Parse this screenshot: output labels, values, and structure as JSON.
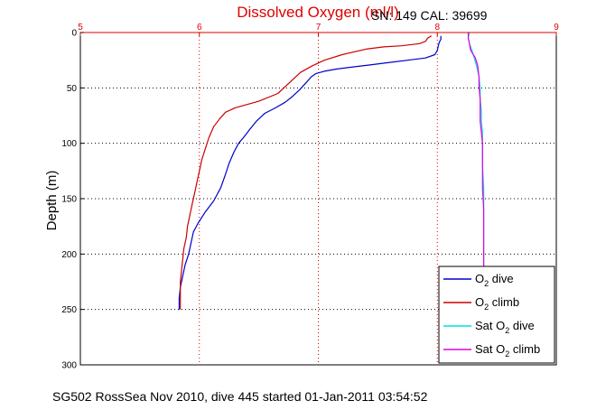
{
  "chart_data": {
    "type": "line",
    "title": "Dissolved Oxygen (ml/l)",
    "title_color": "#e00000",
    "annotation": "SN: 149  CAL: 39699",
    "ylabel": "Depth (m)",
    "xlim": [
      5,
      9
    ],
    "ylim": [
      0,
      300
    ],
    "y_inverted": true,
    "x_axis_position": "top",
    "x_tick_color": "#e00000",
    "x_ticks": [
      "5",
      "6",
      "7",
      "8",
      "9"
    ],
    "y_ticks": [
      "0",
      "50",
      "100",
      "150",
      "200",
      "250",
      "300"
    ],
    "grid": true,
    "legend_position": "bottom-right",
    "series": [
      {
        "name": "O2 dive",
        "legend_label": {
          "prefix": "O",
          "sub": "2",
          "suffix": " dive"
        },
        "color": "#0000cc",
        "points": [
          [
            8.03,
            3
          ],
          [
            8.03,
            6
          ],
          [
            8.02,
            8
          ],
          [
            8.01,
            11
          ],
          [
            8.0,
            16
          ],
          [
            7.98,
            20
          ],
          [
            7.9,
            23
          ],
          [
            7.75,
            25
          ],
          [
            7.6,
            27
          ],
          [
            7.45,
            29
          ],
          [
            7.3,
            31
          ],
          [
            7.15,
            33
          ],
          [
            7.05,
            35
          ],
          [
            6.98,
            37
          ],
          [
            6.94,
            40
          ],
          [
            6.9,
            45
          ],
          [
            6.84,
            52
          ],
          [
            6.78,
            58
          ],
          [
            6.72,
            63
          ],
          [
            6.64,
            68
          ],
          [
            6.55,
            73
          ],
          [
            6.48,
            80
          ],
          [
            6.42,
            88
          ],
          [
            6.37,
            95
          ],
          [
            6.33,
            100
          ],
          [
            6.29,
            108
          ],
          [
            6.25,
            118
          ],
          [
            6.22,
            128
          ],
          [
            6.18,
            140
          ],
          [
            6.12,
            152
          ],
          [
            6.05,
            162
          ],
          [
            5.99,
            172
          ],
          [
            5.95,
            180
          ],
          [
            5.93,
            190
          ],
          [
            5.91,
            200
          ],
          [
            5.88,
            210
          ],
          [
            5.86,
            220
          ],
          [
            5.84,
            230
          ],
          [
            5.83,
            240
          ],
          [
            5.83,
            250
          ]
        ]
      },
      {
        "name": "O2 climb",
        "legend_label": {
          "prefix": "O",
          "sub": "2",
          "suffix": " climb"
        },
        "color": "#cc0000",
        "points": [
          [
            7.95,
            3
          ],
          [
            7.92,
            5
          ],
          [
            7.9,
            8
          ],
          [
            7.85,
            10
          ],
          [
            7.7,
            12
          ],
          [
            7.55,
            13
          ],
          [
            7.4,
            15
          ],
          [
            7.2,
            20
          ],
          [
            7.05,
            25
          ],
          [
            6.95,
            30
          ],
          [
            6.85,
            36
          ],
          [
            6.76,
            45
          ],
          [
            6.66,
            55
          ],
          [
            6.5,
            62
          ],
          [
            6.3,
            68
          ],
          [
            6.22,
            72
          ],
          [
            6.17,
            78
          ],
          [
            6.12,
            85
          ],
          [
            6.08,
            95
          ],
          [
            6.05,
            105
          ],
          [
            6.02,
            115
          ],
          [
            6.0,
            125
          ],
          [
            5.98,
            135
          ],
          [
            5.96,
            145
          ],
          [
            5.94,
            155
          ],
          [
            5.92,
            165
          ],
          [
            5.9,
            175
          ],
          [
            5.89,
            185
          ],
          [
            5.87,
            195
          ],
          [
            5.86,
            205
          ],
          [
            5.85,
            215
          ],
          [
            5.84,
            225
          ],
          [
            5.84,
            235
          ],
          [
            5.84,
            245
          ],
          [
            5.84,
            250
          ]
        ]
      },
      {
        "name": "Sat O2 dive",
        "legend_label": {
          "prefix": "Sat O",
          "sub": "2",
          "suffix": " dive"
        },
        "color": "#00dddd",
        "points": [
          [
            8.27,
            0
          ],
          [
            8.26,
            5
          ],
          [
            8.27,
            10
          ],
          [
            8.29,
            16
          ],
          [
            8.31,
            23
          ],
          [
            8.33,
            30
          ],
          [
            8.35,
            40
          ],
          [
            8.36,
            50
          ],
          [
            8.36,
            60
          ],
          [
            8.37,
            70
          ],
          [
            8.37,
            80
          ],
          [
            8.38,
            90
          ],
          [
            8.38,
            100
          ],
          [
            8.38,
            120
          ],
          [
            8.39,
            140
          ],
          [
            8.39,
            160
          ],
          [
            8.39,
            180
          ],
          [
            8.39,
            200
          ],
          [
            8.39,
            215
          ]
        ]
      },
      {
        "name": "Sat O2 climb",
        "legend_label": {
          "prefix": "Sat O",
          "sub": "2",
          "suffix": " climb"
        },
        "color": "#dd00dd",
        "points": [
          [
            8.26,
            0
          ],
          [
            8.26,
            5
          ],
          [
            8.27,
            10
          ],
          [
            8.28,
            16
          ],
          [
            8.32,
            23
          ],
          [
            8.34,
            30
          ],
          [
            8.35,
            40
          ],
          [
            8.35,
            50
          ],
          [
            8.36,
            60
          ],
          [
            8.36,
            70
          ],
          [
            8.36,
            80
          ],
          [
            8.37,
            90
          ],
          [
            8.38,
            100
          ],
          [
            8.38,
            120
          ],
          [
            8.38,
            140
          ],
          [
            8.39,
            160
          ],
          [
            8.39,
            180
          ],
          [
            8.39,
            200
          ],
          [
            8.39,
            215
          ]
        ]
      }
    ]
  },
  "footer": "SG502 RossSea Nov 2010, dive 445 started 01-Jan-2011 03:54:52"
}
